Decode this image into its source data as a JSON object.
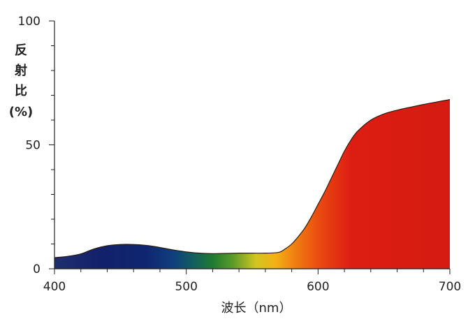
{
  "chart_data": {
    "type": "area",
    "title": "",
    "xlabel": "波长（nm）",
    "ylabel_lines": [
      "反",
      "射",
      "比",
      "(%)"
    ],
    "xlim": [
      400,
      700
    ],
    "ylim": [
      0,
      100
    ],
    "x_ticks": [
      400,
      500,
      600,
      700
    ],
    "y_ticks": [
      0,
      50,
      100
    ],
    "grid": false,
    "fill": "visible-spectrum gradient (blue to red)",
    "series": [
      {
        "x": [
          400,
          410,
          420,
          430,
          440,
          450,
          460,
          470,
          480,
          490,
          500,
          510,
          520,
          530,
          540,
          550,
          560,
          570,
          575,
          580,
          585,
          590,
          595,
          600,
          605,
          610,
          615,
          620,
          625,
          630,
          640,
          650,
          660,
          670,
          680,
          690,
          700
        ],
        "values": [
          4.5,
          5.0,
          6.0,
          8.0,
          9.3,
          9.8,
          9.8,
          9.4,
          8.6,
          7.6,
          6.8,
          6.3,
          6.1,
          6.2,
          6.3,
          6.3,
          6.3,
          6.6,
          8.0,
          10.0,
          13.0,
          16.5,
          21.0,
          26.0,
          31.0,
          36.5,
          42.0,
          47.5,
          52.0,
          55.5,
          60.0,
          62.5,
          64.0,
          65.2,
          66.3,
          67.3,
          68.3
        ]
      }
    ]
  }
}
